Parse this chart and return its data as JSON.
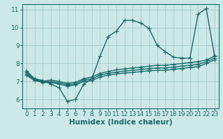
{
  "xlabel": "Humidex (Indice chaleur)",
  "bg_color": "#cce8e8",
  "grid_color": "#aacccc",
  "line_color": "#1a6b6b",
  "xlim": [
    -0.5,
    23.5
  ],
  "ylim": [
    5.5,
    11.3
  ],
  "yticks": [
    6,
    7,
    8,
    9,
    10,
    11
  ],
  "xticks": [
    0,
    1,
    2,
    3,
    4,
    5,
    6,
    7,
    8,
    9,
    10,
    11,
    12,
    13,
    14,
    15,
    16,
    17,
    18,
    19,
    20,
    21,
    22,
    23
  ],
  "series": {
    "max": {
      "x": [
        0,
        1,
        2,
        3,
        4,
        5,
        6,
        7,
        8,
        9,
        10,
        11,
        12,
        13,
        14,
        15,
        16,
        17,
        18,
        19,
        20,
        21,
        22,
        23
      ],
      "y": [
        7.6,
        7.15,
        7.05,
        6.85,
        6.65,
        5.9,
        6.0,
        6.85,
        7.15,
        8.4,
        9.5,
        9.8,
        10.4,
        10.4,
        10.25,
        9.95,
        9.0,
        8.65,
        8.35,
        8.3,
        8.3,
        10.75,
        11.05,
        8.45
      ]
    },
    "p75": {
      "x": [
        0,
        1,
        2,
        3,
        4,
        5,
        6,
        7,
        8,
        9,
        10,
        11,
        12,
        13,
        14,
        15,
        16,
        17,
        18,
        19,
        20,
        21,
        22,
        23
      ],
      "y": [
        7.5,
        7.12,
        7.02,
        7.08,
        7.0,
        6.9,
        6.95,
        7.15,
        7.25,
        7.45,
        7.55,
        7.65,
        7.7,
        7.75,
        7.8,
        7.85,
        7.9,
        7.9,
        7.95,
        8.0,
        8.05,
        8.1,
        8.2,
        8.4
      ]
    },
    "mean": {
      "x": [
        0,
        1,
        2,
        3,
        4,
        5,
        6,
        7,
        8,
        9,
        10,
        11,
        12,
        13,
        14,
        15,
        16,
        17,
        18,
        19,
        20,
        21,
        22,
        23
      ],
      "y": [
        7.42,
        7.08,
        6.98,
        7.0,
        6.92,
        6.82,
        6.87,
        7.08,
        7.15,
        7.35,
        7.45,
        7.52,
        7.58,
        7.62,
        7.67,
        7.72,
        7.75,
        7.75,
        7.8,
        7.85,
        7.9,
        7.95,
        8.1,
        8.3
      ]
    },
    "p25": {
      "x": [
        0,
        1,
        2,
        3,
        4,
        5,
        6,
        7,
        8,
        9,
        10,
        11,
        12,
        13,
        14,
        15,
        16,
        17,
        18,
        19,
        20,
        21,
        22,
        23
      ],
      "y": [
        7.35,
        7.05,
        6.95,
        6.95,
        6.85,
        6.75,
        6.8,
        7.0,
        7.05,
        7.25,
        7.35,
        7.42,
        7.47,
        7.5,
        7.55,
        7.6,
        7.62,
        7.62,
        7.68,
        7.72,
        7.78,
        7.82,
        8.0,
        8.2
      ]
    }
  },
  "marker_size": 2.5,
  "line_width": 1.0,
  "font_size_label": 7.5,
  "font_size_tick": 6.5
}
